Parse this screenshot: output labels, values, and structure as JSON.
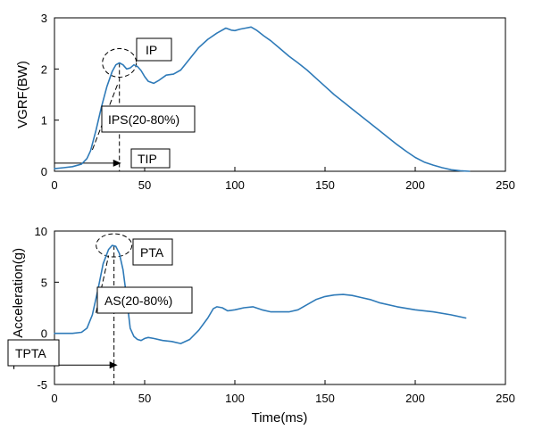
{
  "chart_data": [
    {
      "type": "line",
      "title": "",
      "xlabel": "",
      "ylabel": "VGRF(BW)",
      "xlim": [
        0,
        250
      ],
      "ylim": [
        0,
        3
      ],
      "x_ticks": [
        "0",
        "50",
        "100",
        "150",
        "200",
        "250"
      ],
      "y_ticks": [
        "0",
        "1",
        "2",
        "3"
      ],
      "grid": false,
      "color": "#2e7ab8",
      "series": [
        {
          "x": [
            0,
            5,
            10,
            15,
            18,
            20,
            23,
            26,
            29,
            32,
            34,
            36,
            38,
            40,
            42,
            44,
            46,
            48,
            50,
            52,
            55,
            58,
            62,
            66,
            70,
            75,
            80,
            85,
            90,
            95,
            98,
            100,
            103,
            106,
            109,
            112,
            116,
            120,
            125,
            130,
            135,
            140,
            145,
            150,
            155,
            160,
            165,
            170,
            175,
            180,
            185,
            190,
            195,
            200,
            205,
            210,
            215,
            220,
            225,
            230
          ],
          "y": [
            0.05,
            0.07,
            0.09,
            0.14,
            0.25,
            0.4,
            0.8,
            1.25,
            1.65,
            1.95,
            2.08,
            2.12,
            2.08,
            2.0,
            2.02,
            2.08,
            2.05,
            1.97,
            1.85,
            1.76,
            1.72,
            1.78,
            1.88,
            1.9,
            1.98,
            2.2,
            2.42,
            2.58,
            2.7,
            2.8,
            2.76,
            2.75,
            2.78,
            2.8,
            2.82,
            2.76,
            2.65,
            2.55,
            2.4,
            2.25,
            2.12,
            1.98,
            1.82,
            1.66,
            1.5,
            1.36,
            1.22,
            1.08,
            0.94,
            0.8,
            0.66,
            0.52,
            0.39,
            0.27,
            0.18,
            0.12,
            0.07,
            0.03,
            0.01,
            0.0
          ]
        }
      ],
      "annotations": {
        "peak": {
          "label": "IP",
          "x": 36,
          "y": 2.12
        },
        "slope": {
          "label": "IPS(20-80%)",
          "x_start": 21,
          "y_start": 0.42,
          "x_end": 35,
          "y_end": 1.7
        },
        "time": {
          "label": "TIP",
          "x_end": 37,
          "y": 0.16
        }
      }
    },
    {
      "type": "line",
      "title": "",
      "xlabel": "Time(ms)",
      "ylabel": "Tibia Acceleration(g)",
      "xlim": [
        0,
        250
      ],
      "ylim": [
        -5,
        10
      ],
      "x_ticks": [
        "0",
        "50",
        "100",
        "150",
        "200",
        "250"
      ],
      "y_ticks": [
        "-5",
        "0",
        "5",
        "10"
      ],
      "grid": false,
      "color": "#2e7ab8",
      "series": [
        {
          "x": [
            0,
            10,
            15,
            18,
            21,
            24,
            27,
            30,
            32,
            34,
            36,
            38,
            40,
            42,
            44,
            46,
            48,
            50,
            52,
            55,
            60,
            65,
            70,
            75,
            80,
            85,
            88,
            90,
            93,
            96,
            100,
            105,
            110,
            115,
            120,
            125,
            130,
            135,
            140,
            145,
            150,
            155,
            160,
            165,
            170,
            175,
            180,
            190,
            200,
            210,
            220,
            228
          ],
          "y": [
            0,
            0,
            0.1,
            0.5,
            1.8,
            4.2,
            6.8,
            8.2,
            8.6,
            8.5,
            7.8,
            6.2,
            3.5,
            0.5,
            -0.3,
            -0.6,
            -0.7,
            -0.5,
            -0.4,
            -0.5,
            -0.7,
            -0.8,
            -1.0,
            -0.6,
            0.3,
            1.5,
            2.4,
            2.6,
            2.5,
            2.2,
            2.3,
            2.5,
            2.6,
            2.3,
            2.1,
            2.1,
            2.1,
            2.3,
            2.8,
            3.3,
            3.6,
            3.75,
            3.8,
            3.7,
            3.5,
            3.3,
            3.0,
            2.6,
            2.3,
            2.1,
            1.8,
            1.5
          ]
        }
      ],
      "annotations": {
        "peak": {
          "label": "PTA",
          "x": 33,
          "y": 8.6
        },
        "slope": {
          "label": "AS(20-80%)",
          "x_start": 23,
          "y_start": 2.0,
          "x_end": 30,
          "y_end": 7.6
        },
        "time": {
          "label": "TPTA",
          "x_end": 35,
          "y": -3.1
        }
      }
    }
  ]
}
